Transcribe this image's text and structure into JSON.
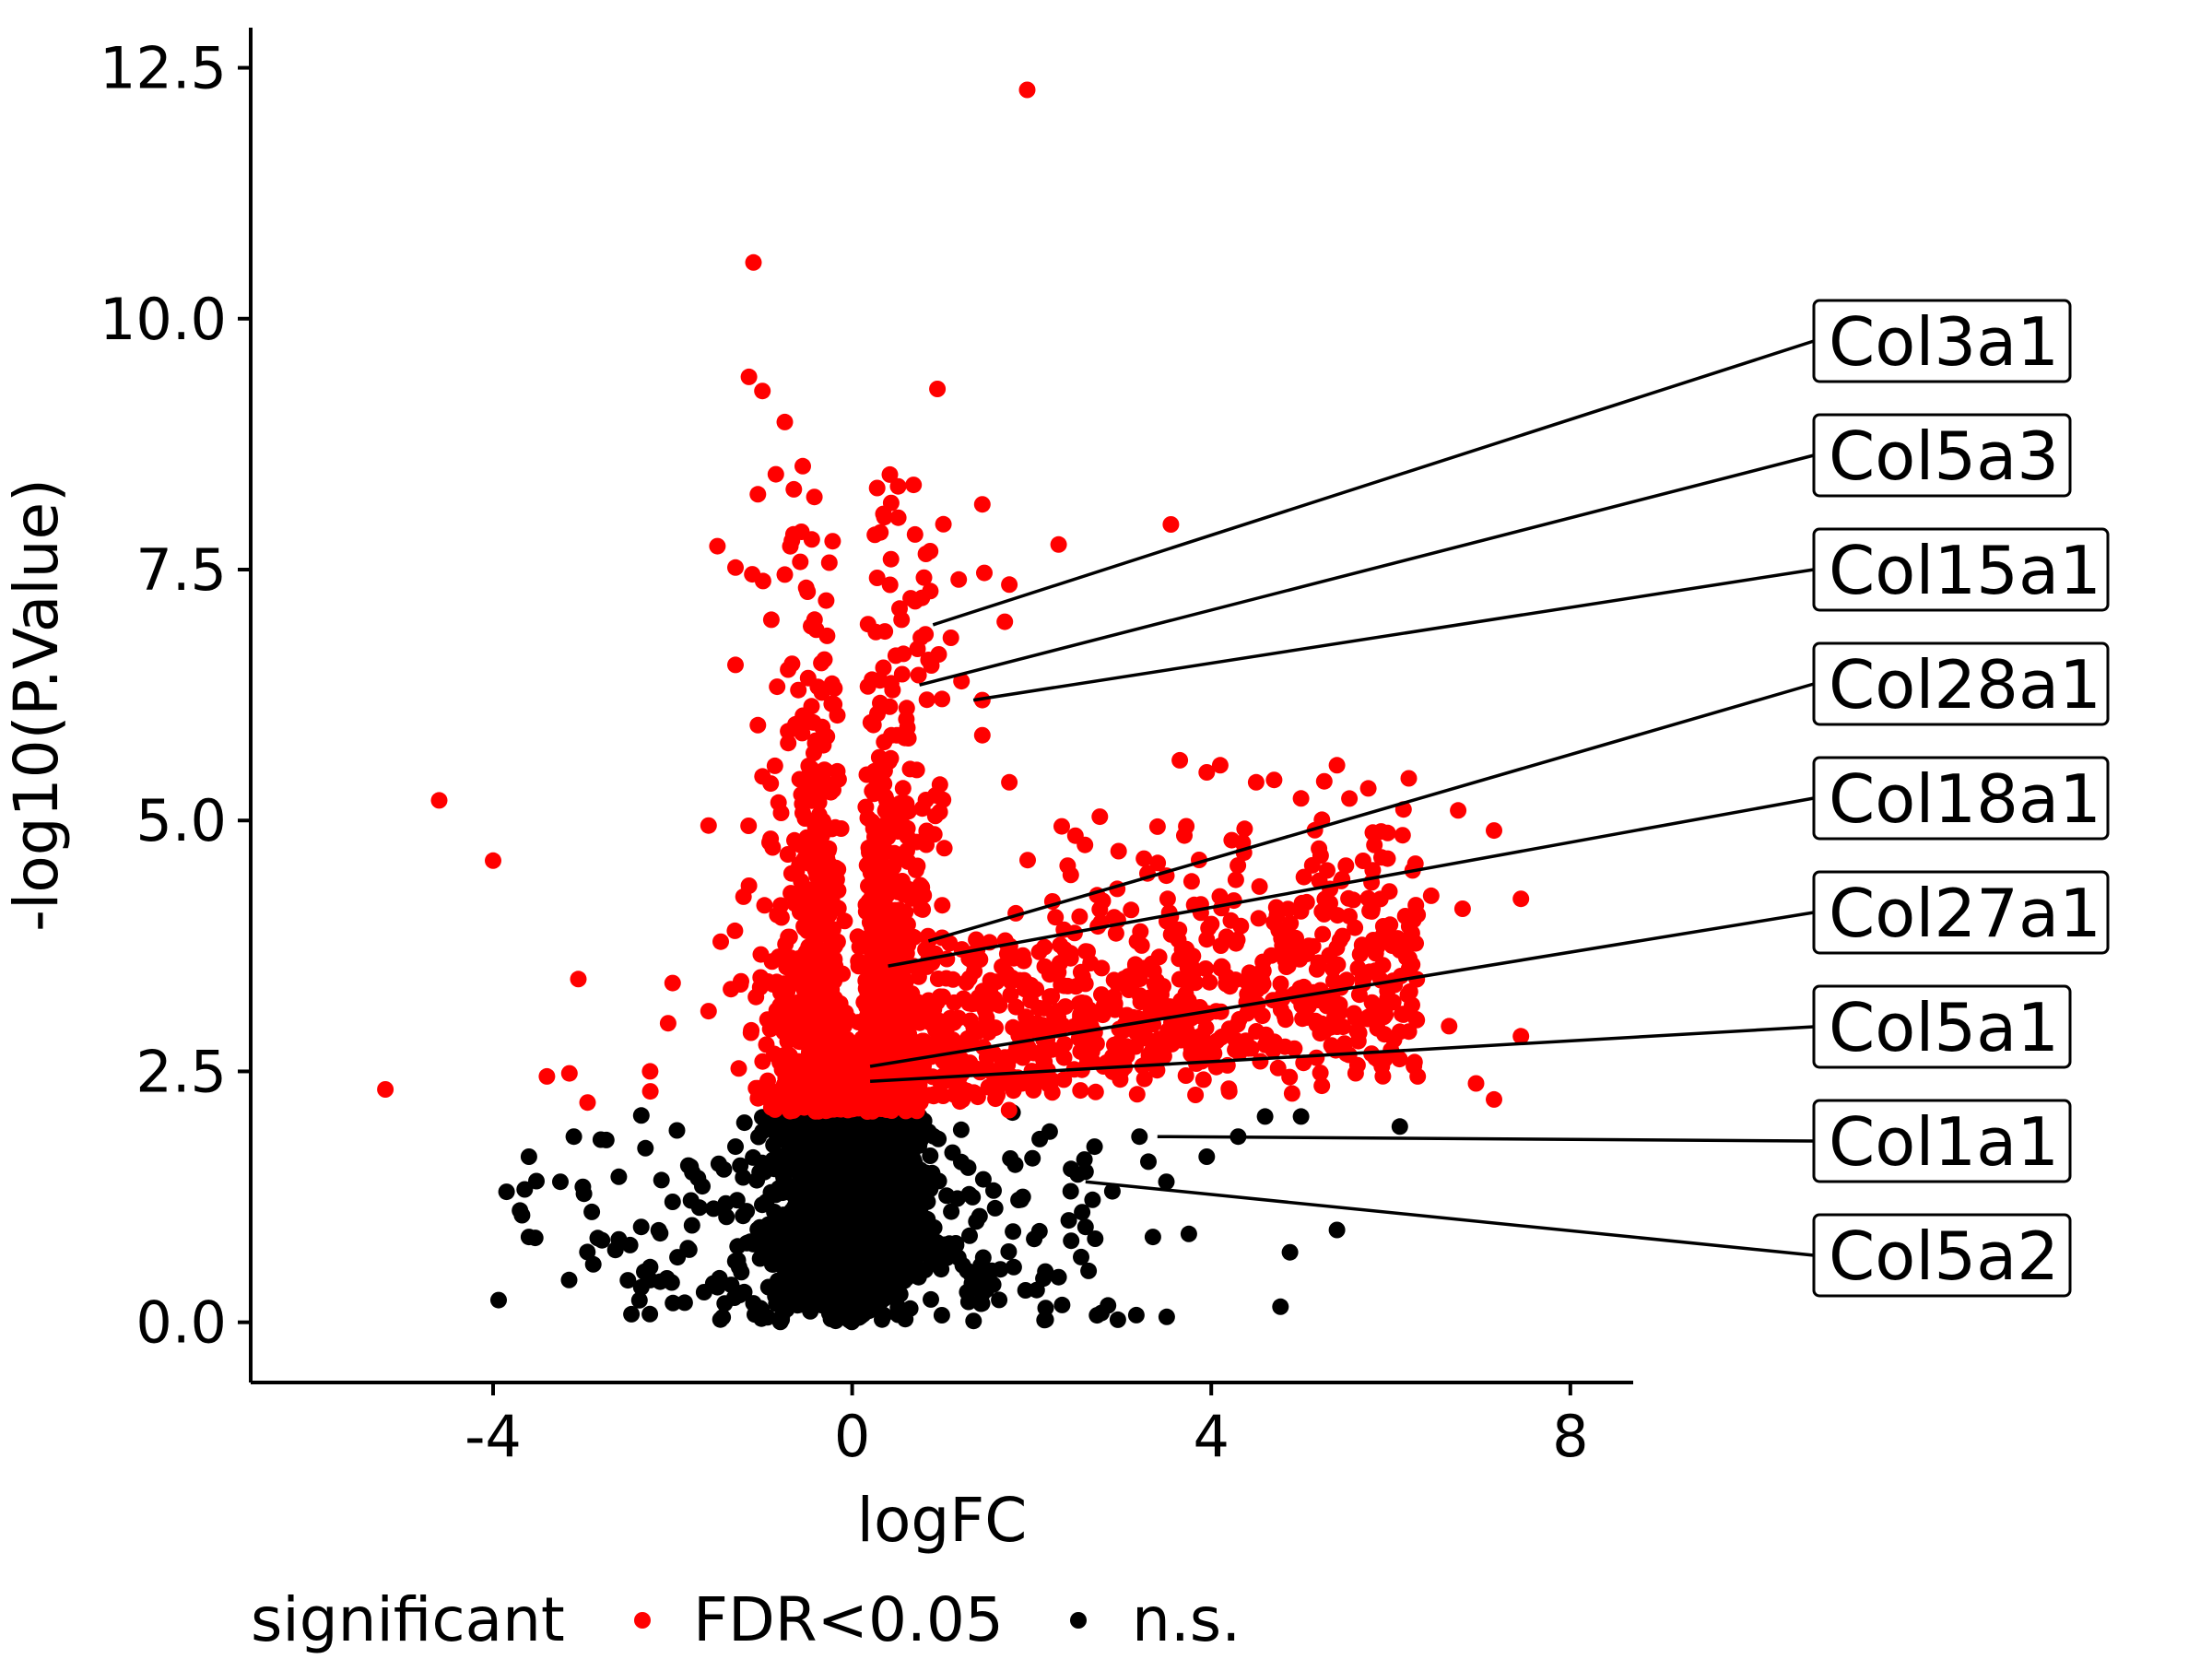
{
  "chart_data": {
    "type": "scatter",
    "title": "",
    "xlabel": "logFC",
    "ylabel": "-log10(P.Value)",
    "xlim": [
      -6.7,
      8.7
    ],
    "ylim": [
      -0.6,
      12.9
    ],
    "xticks": [
      -4,
      0,
      4,
      8
    ],
    "xtick_labels": [
      "-4",
      "0",
      "4",
      "8"
    ],
    "yticks": [
      0,
      2.5,
      5,
      7.5,
      10,
      12.5
    ],
    "ytick_labels": [
      "0.0",
      "2.5",
      "5.0",
      "7.5",
      "10.0",
      "12.5"
    ],
    "grid": false,
    "legend": {
      "title": "significant",
      "placement": "bottom",
      "entries": [
        {
          "name": "FDR<0.05",
          "color": "#ff0000"
        },
        {
          "name": "n.s.",
          "color": "#000000"
        }
      ]
    },
    "significance_threshold": 2.1,
    "series": [
      {
        "name": "FDR<0.05",
        "color": "#ff0000",
        "points": [
          [
            1.95,
            12.28
          ],
          [
            -1.1,
            10.56
          ],
          [
            -1.15,
            9.42
          ],
          [
            -1.0,
            9.28
          ],
          [
            0.95,
            9.3
          ],
          [
            -0.75,
            8.97
          ],
          [
            -0.55,
            8.53
          ],
          [
            -0.85,
            8.45
          ],
          [
            -1.05,
            8.25
          ],
          [
            -0.65,
            8.3
          ],
          [
            1.45,
            8.15
          ],
          [
            3.55,
            7.95
          ],
          [
            2.3,
            7.75
          ],
          [
            0.7,
            7.85
          ],
          [
            -0.45,
            7.8
          ],
          [
            -1.3,
            7.52
          ],
          [
            -0.75,
            7.45
          ],
          [
            1.75,
            7.35
          ],
          [
            0.8,
            7.42
          ],
          [
            -0.9,
            7.0
          ],
          [
            0.55,
            7.0
          ],
          [
            1.7,
            6.98
          ],
          [
            1.1,
            6.82
          ],
          [
            -0.4,
            6.9
          ],
          [
            -1.3,
            6.55
          ],
          [
            0.85,
            6.6
          ],
          [
            -0.6,
            6.3
          ],
          [
            1.45,
            6.2
          ],
          [
            0.45,
            6.3
          ],
          [
            -1.05,
            5.95
          ],
          [
            1.45,
            5.85
          ],
          [
            -0.3,
            5.5
          ],
          [
            1.75,
            5.38
          ],
          [
            3.65,
            5.6
          ],
          [
            4.1,
            5.55
          ],
          [
            5.4,
            5.55
          ],
          [
            6.2,
            5.42
          ],
          [
            4.5,
            5.38
          ],
          [
            3.95,
            5.48
          ],
          [
            5.0,
            5.22
          ],
          [
            -4.6,
            5.2
          ],
          [
            -1.6,
            4.95
          ],
          [
            3.7,
            4.85
          ],
          [
            5.8,
            4.88
          ],
          [
            6.75,
            5.1
          ],
          [
            7.15,
            4.9
          ],
          [
            4.35,
            4.78
          ],
          [
            5.2,
            4.72
          ],
          [
            -4.0,
            4.6
          ],
          [
            3.25,
            4.62
          ],
          [
            2.4,
            4.55
          ],
          [
            5.5,
            4.55
          ],
          [
            -0.35,
            4.8
          ],
          [
            3.5,
            4.45
          ],
          [
            7.45,
            4.22
          ],
          [
            6.45,
            4.25
          ],
          [
            6.8,
            4.12
          ],
          [
            -1.15,
            4.35
          ],
          [
            -3.05,
            3.42
          ],
          [
            -2.0,
            3.38
          ],
          [
            -1.35,
            3.32
          ],
          [
            -3.15,
            2.48
          ],
          [
            -3.4,
            2.45
          ],
          [
            -2.25,
            2.5
          ],
          [
            -5.2,
            2.32
          ],
          [
            -1.6,
            3.1
          ],
          [
            -2.05,
            2.98
          ],
          [
            6.3,
            2.45
          ],
          [
            6.95,
            2.38
          ],
          [
            7.15,
            2.22
          ],
          [
            6.65,
            2.95
          ],
          [
            7.45,
            2.85
          ],
          [
            5.9,
            2.55
          ],
          [
            4.2,
            2.3
          ],
          [
            4.9,
            2.28
          ],
          [
            2.8,
            2.55
          ],
          [
            1.6,
            2.35
          ],
          [
            1.2,
            2.2
          ],
          [
            -0.3,
            4.2
          ],
          [
            0.4,
            4.1
          ],
          [
            0.3,
            3.8
          ],
          [
            -0.2,
            3.4
          ],
          [
            0.25,
            3.1
          ],
          [
            -0.45,
            2.9
          ],
          [
            0.5,
            2.7
          ],
          [
            -0.15,
            2.5
          ],
          [
            0.2,
            2.3
          ],
          [
            -0.6,
            2.6
          ],
          [
            0.6,
            3.4
          ],
          [
            -0.5,
            3.9
          ]
        ]
      },
      {
        "name": "n.s.",
        "color": "#000000",
        "points": [
          [
            -3.6,
            1.65
          ],
          [
            -3.1,
            1.85
          ],
          [
            -2.8,
            1.82
          ],
          [
            -3.85,
            1.3
          ],
          [
            -3.6,
            0.85
          ],
          [
            -3.25,
            1.4
          ],
          [
            -3.0,
            1.35
          ],
          [
            -2.6,
            1.45
          ],
          [
            -2.9,
            1.1
          ],
          [
            -2.35,
            0.95
          ],
          [
            -2.95,
            0.7
          ],
          [
            -2.25,
            0.55
          ],
          [
            -2.25,
            0.42
          ],
          [
            -1.65,
            0.3
          ],
          [
            -2.0,
            1.2
          ],
          [
            -1.8,
            1.55
          ],
          [
            -1.3,
            1.75
          ],
          [
            2.7,
            1.75
          ],
          [
            3.2,
            1.85
          ],
          [
            3.3,
            1.6
          ],
          [
            4.3,
            1.85
          ],
          [
            4.6,
            2.05
          ],
          [
            5.0,
            2.05
          ],
          [
            6.1,
            1.95
          ],
          [
            3.95,
            1.65
          ],
          [
            3.5,
            1.4
          ],
          [
            2.6,
            1.5
          ],
          [
            3.35,
            0.85
          ],
          [
            3.75,
            0.88
          ],
          [
            5.4,
            0.92
          ],
          [
            2.55,
            0.65
          ],
          [
            2.6,
            0.95
          ],
          [
            2.3,
            0.45
          ],
          [
            1.8,
            0.55
          ],
          [
            1.45,
            0.5
          ],
          [
            -1.5,
            0.35
          ],
          [
            -1.4,
            1.05
          ],
          [
            1.9,
            1.25
          ],
          [
            2.2,
            1.9
          ],
          [
            -1.0,
            1.9
          ]
        ]
      }
    ],
    "labels": [
      {
        "text": "Col3a1",
        "x": 0.9,
        "y": 6.95
      },
      {
        "text": "Col5a3",
        "x": 0.75,
        "y": 6.35
      },
      {
        "text": "Col15a1",
        "x": 1.35,
        "y": 6.2
      },
      {
        "text": "Col28a1",
        "x": 0.85,
        "y": 3.8
      },
      {
        "text": "Col18a1",
        "x": 0.4,
        "y": 3.55
      },
      {
        "text": "Col27a1",
        "x": 0.2,
        "y": 2.55
      },
      {
        "text": "Col5a1",
        "x": 0.2,
        "y": 2.4
      },
      {
        "text": "Col1a1",
        "x": 3.4,
        "y": 1.85
      },
      {
        "text": "Col5a2",
        "x": 2.6,
        "y": 1.4
      }
    ]
  }
}
